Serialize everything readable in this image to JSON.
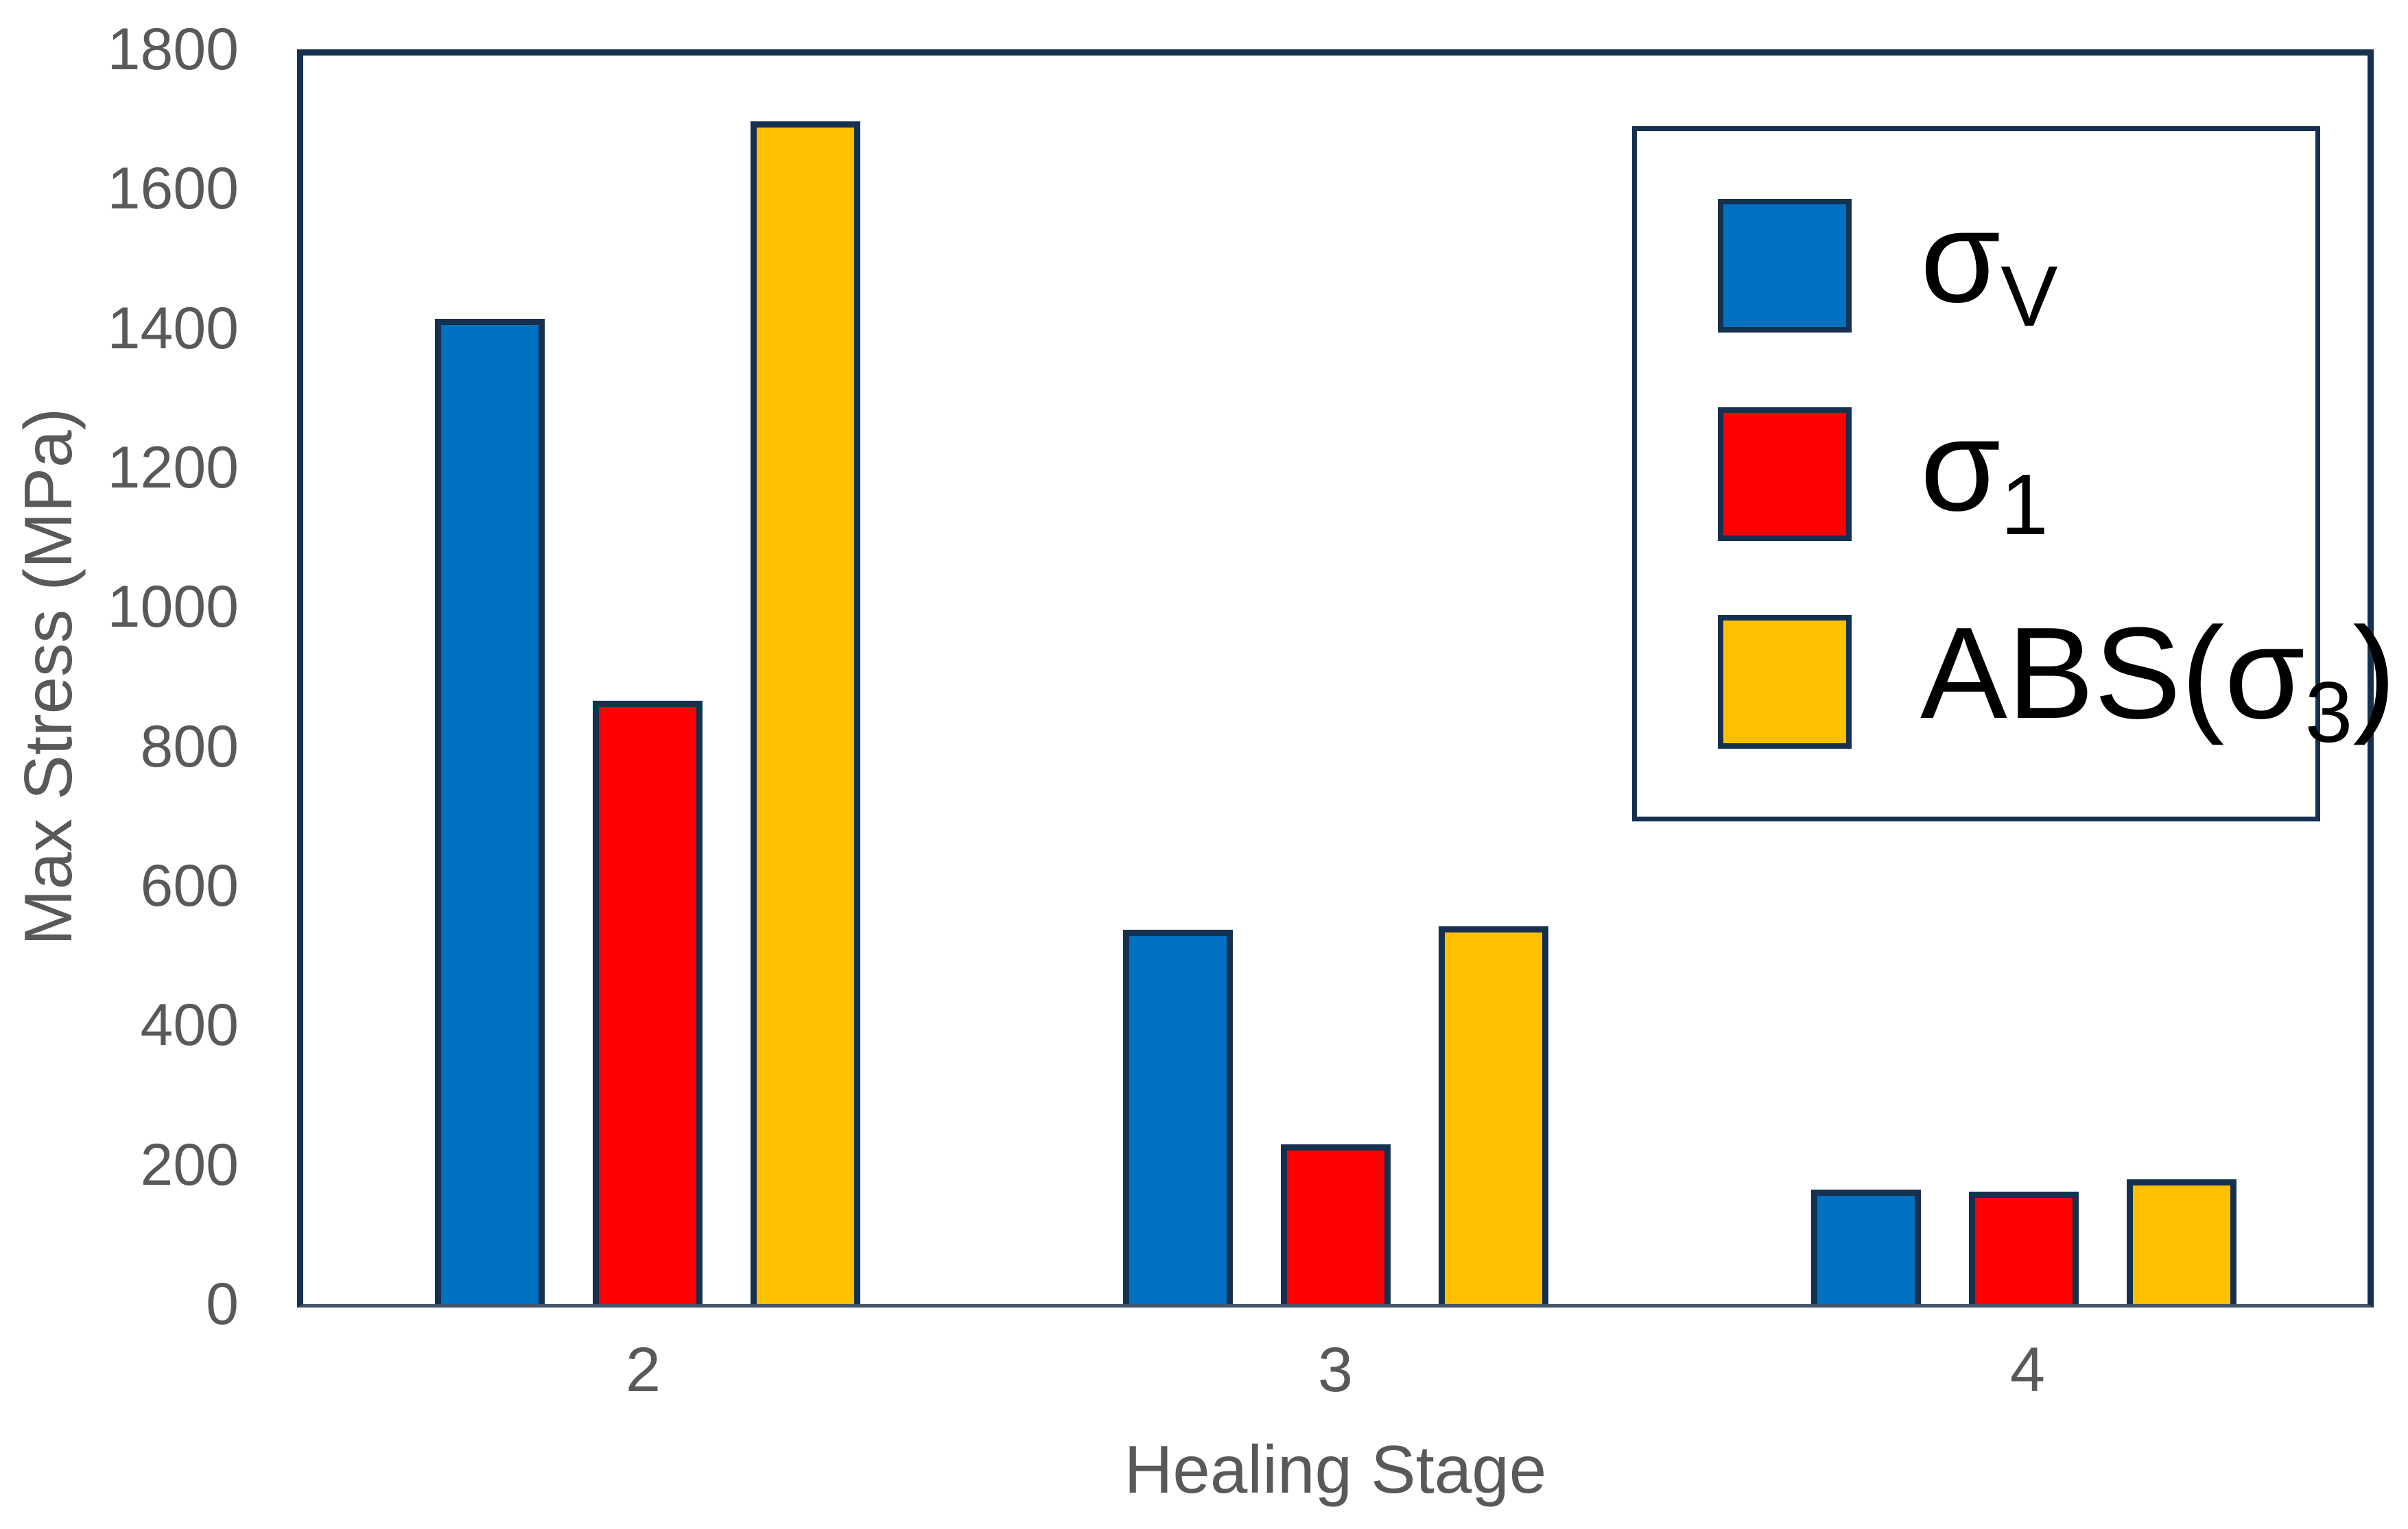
{
  "figure": {
    "background": "#FFFFFF"
  },
  "colors": {
    "frame": "#16304F",
    "baseline": "#44546A",
    "tick_text": "#595959",
    "legend_text": "#000000"
  },
  "chart_data": {
    "type": "bar",
    "title": "",
    "categories": [
      "2",
      "3",
      "4"
    ],
    "series": [
      {
        "name": "sigma-v",
        "label_main": "σ",
        "label_sub": "V",
        "label_suffix": "",
        "color": "#0070C0",
        "values": [
          1420,
          540,
          165
        ]
      },
      {
        "name": "sigma-1",
        "label_main": "σ",
        "label_sub": "1",
        "label_suffix": "",
        "color": "#FF0000",
        "values": [
          870,
          230,
          162
        ]
      },
      {
        "name": "abs-sigma-3",
        "label_main": "ABS(σ",
        "label_sub": "3",
        "label_suffix": ")",
        "color": "#FFC000",
        "values": [
          1705,
          545,
          180
        ]
      }
    ],
    "xlabel": "Healing Stage",
    "ylabel": "Max Stress (MPa)",
    "ylim": [
      0,
      1800
    ],
    "yticks": [
      0,
      200,
      400,
      600,
      800,
      1000,
      1200,
      1400,
      1600,
      1800
    ],
    "grid": false,
    "legend_position": "upper right",
    "bar_edge_color": "#16304F"
  }
}
